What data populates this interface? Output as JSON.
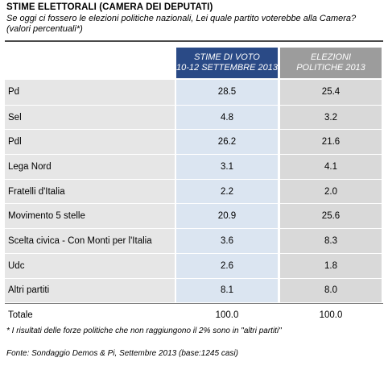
{
  "header": {
    "title": "STIME ELETTORALI (CAMERA DEI DEPUTATI)",
    "question": "Se oggi ci fossero le elezioni politiche nazionali, Lei quale partito voterebbe alla Camera? (valori percentuali*)"
  },
  "chart_data": {
    "type": "table",
    "columns": [
      {
        "line1": "STIME DI VOTO",
        "line2": "10-12 settembre 2013",
        "color": "#2a4a86"
      },
      {
        "line1": "ELEZIONI",
        "line2": "POLITICHE 2013",
        "color": "#9c9c9c"
      }
    ],
    "rows": [
      {
        "party": "Pd",
        "estimate": "28.5",
        "election": "25.4"
      },
      {
        "party": "Sel",
        "estimate": "4.8",
        "election": "3.2"
      },
      {
        "party": "Pdl",
        "estimate": "26.2",
        "election": "21.6"
      },
      {
        "party": "Lega Nord",
        "estimate": "3.1",
        "election": "4.1"
      },
      {
        "party": "Fratelli d'Italia",
        "estimate": "2.2",
        "election": "2.0"
      },
      {
        "party": "Movimento 5 stelle",
        "estimate": "20.9",
        "election": "25.6"
      },
      {
        "party": "Scelta civica - Con Monti per l'Italia",
        "estimate": "3.6",
        "election": "8.3"
      },
      {
        "party": "Udc",
        "estimate": "2.6",
        "election": "1.8"
      },
      {
        "party": "Altri partiti",
        "estimate": "8.1",
        "election": "8.0"
      }
    ],
    "total": {
      "label": "Totale",
      "estimate": "100.0",
      "election": "100.0"
    }
  },
  "footer": {
    "note": "* I risultati delle forze politiche che non raggiungono il 2% sono in \"altri partiti\"",
    "source": "Fonte: Sondaggio Demos & Pi, Settembre 2013 (base:1245 casi)"
  }
}
